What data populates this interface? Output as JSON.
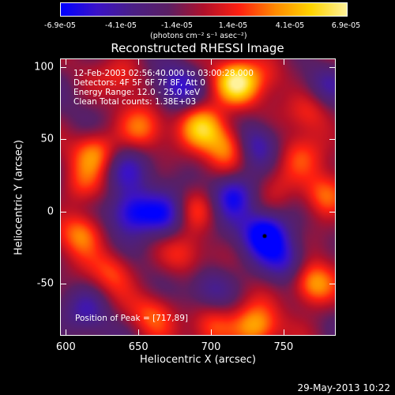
{
  "colorbar": {
    "ticks": [
      "-6.9e-05",
      "-4.1e-05",
      "-1.4e-05",
      "1.4e-05",
      "4.1e-05",
      "6.9e-05"
    ],
    "unit_label": "(photons cm⁻² s⁻¹ asec⁻²)",
    "range": [
      -6.9e-05,
      6.9e-05
    ],
    "colormap_stops": [
      "#0000ff",
      "#3a12c8",
      "#4a1f86",
      "#5a1f64",
      "#b0102a",
      "#ff2010",
      "#ff8a00",
      "#ffd400",
      "#fff29a"
    ]
  },
  "chart_data": {
    "type": "heatmap",
    "title": "Reconstructed RHESSI Image",
    "xlabel": "Heliocentric X (arcsec)",
    "ylabel": "Heliocentric Y (arcsec)",
    "xlim": [
      596,
      786
    ],
    "ylim": [
      -86,
      106
    ],
    "xticks": [
      600,
      650,
      700,
      750
    ],
    "yticks": [
      -50,
      0,
      50,
      100
    ],
    "annotations": [
      "12-Feb-2003 02:56:40.000 to 03:00:28.000",
      "Detectors: 4F 5F 6F 7F 8F, Att 0",
      "Energy Range: 12.0 - 25.0 keV",
      "Clean     Total counts: 1.38E+03"
    ],
    "peak_label": "Position of Peak = [717,89]",
    "peak_position": [
      717,
      89
    ],
    "sources": [
      {
        "x": 718,
        "y": 90,
        "value": 6.8e-05
      },
      {
        "x": 694,
        "y": 60,
        "value": 6e-05
      },
      {
        "x": 712,
        "y": 46,
        "value": 5e-05
      },
      {
        "x": 620,
        "y": 42,
        "value": 4.5e-05
      },
      {
        "x": 652,
        "y": 58,
        "value": 3.8e-05
      },
      {
        "x": 610,
        "y": -14,
        "value": 4.8e-05
      },
      {
        "x": 690,
        "y": 2,
        "value": 3.5e-05
      },
      {
        "x": 632,
        "y": -40,
        "value": 3.2e-05
      },
      {
        "x": 770,
        "y": -50,
        "value": 5.8e-05
      },
      {
        "x": 778,
        "y": 12,
        "value": 4.5e-05
      },
      {
        "x": 768,
        "y": 70,
        "value": 3e-05
      },
      {
        "x": 730,
        "y": -80,
        "value": 5.5e-05
      },
      {
        "x": 700,
        "y": -78,
        "value": 4e-05
      },
      {
        "x": 660,
        "y": -70,
        "value": 3.2e-05
      },
      {
        "x": 760,
        "y": 38,
        "value": 2.8e-05
      },
      {
        "x": 740,
        "y": 96,
        "value": 2.5e-05
      },
      {
        "x": 640,
        "y": 95,
        "value": 2.8e-05
      },
      {
        "x": 680,
        "y": -30,
        "value": 2.5e-05
      },
      {
        "x": 610,
        "y": 18,
        "value": 2.4e-05
      },
      {
        "x": 745,
        "y": 20,
        "value": 2.2e-05
      },
      {
        "x": 715,
        "y": 12,
        "value": -5.5e-05
      },
      {
        "x": 737,
        "y": -14,
        "value": -6.9e-05
      },
      {
        "x": 645,
        "y": 0,
        "value": -6e-05
      },
      {
        "x": 668,
        "y": -2,
        "value": -4.5e-05
      },
      {
        "x": 730,
        "y": 48,
        "value": -4e-05
      },
      {
        "x": 676,
        "y": 88,
        "value": -3.5e-05
      },
      {
        "x": 752,
        "y": -32,
        "value": -3.5e-05
      },
      {
        "x": 640,
        "y": 28,
        "value": -3e-05
      },
      {
        "x": 700,
        "y": -52,
        "value": -3e-05
      },
      {
        "x": 615,
        "y": -68,
        "value": -2.5e-05
      },
      {
        "x": 780,
        "y": 90,
        "value": -2.5e-05
      }
    ]
  },
  "footer": {
    "timestamp": "29-May-2013 10:22"
  }
}
